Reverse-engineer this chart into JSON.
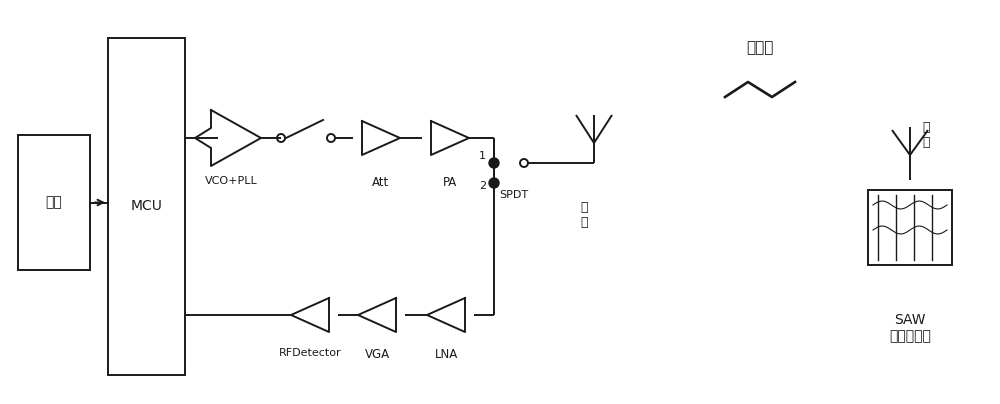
{
  "bg_color": "#ffffff",
  "line_color": "#1a1a1a",
  "fig_width": 10.0,
  "fig_height": 4.04,
  "labels": {
    "serial_port": "串口",
    "mcu": "MCU",
    "vco_pll": "VCO+PLL",
    "att": "Att",
    "pa": "PA",
    "antenna_label": "天\n线",
    "spdt": "SPDT",
    "lna": "LNA",
    "vga": "VGA",
    "rfdetector": "RFDetector",
    "port1": "1",
    "port2": "2",
    "em_wave": "电磁波",
    "saw_label": "SAW\n温度传感器",
    "saw_antenna_label": "天\n线"
  }
}
